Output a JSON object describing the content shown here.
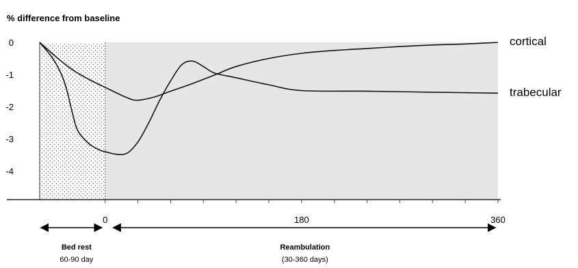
{
  "chart_data": {
    "type": "line",
    "ylabel": "% difference from baseline",
    "xlabel": "",
    "y_ticks": [
      "0",
      "-1",
      "-2",
      "-3",
      "-4"
    ],
    "x_ticks": [
      "0",
      "180",
      "360"
    ],
    "xlim": [
      -60,
      360
    ],
    "ylim": [
      -4.8,
      0
    ],
    "series": [
      {
        "name": "cortical",
        "x": [
          -60,
          -45,
          -30,
          -15,
          0,
          20,
          30,
          45,
          60,
          80,
          100,
          120,
          150,
          180,
          210,
          240,
          270,
          300,
          330,
          360
        ],
        "y": [
          0,
          -0.45,
          -0.85,
          -1.15,
          -1.4,
          -1.72,
          -1.8,
          -1.7,
          -1.52,
          -1.28,
          -1.02,
          -0.75,
          -0.5,
          -0.34,
          -0.25,
          -0.19,
          -0.13,
          -0.08,
          -0.05,
          0
        ]
      },
      {
        "name": "trabecular",
        "x": [
          -60,
          -48,
          -40,
          -35,
          -30,
          -25,
          -15,
          -5,
          0,
          10,
          20,
          30,
          40,
          50,
          60,
          70,
          80,
          90,
          100,
          120,
          150,
          180,
          240,
          300,
          360
        ],
        "y": [
          0,
          -0.5,
          -1.0,
          -1.5,
          -2.2,
          -2.75,
          -3.15,
          -3.35,
          -3.4,
          -3.48,
          -3.45,
          -3.1,
          -2.5,
          -1.8,
          -1.2,
          -0.7,
          -0.58,
          -0.75,
          -0.95,
          -1.1,
          -1.32,
          -1.5,
          -1.52,
          -1.55,
          -1.58
        ]
      }
    ],
    "phases": [
      {
        "title": "Bed rest",
        "range": "60-90 day",
        "x_start": -60,
        "x_end": 0,
        "fill": "dotted"
      },
      {
        "title": "Reambulation",
        "range": "(30-360 days)",
        "x_start": 0,
        "x_end": 360,
        "fill": "#e6e6e6"
      }
    ],
    "grid": false,
    "legend": "right, inline at line ends"
  }
}
